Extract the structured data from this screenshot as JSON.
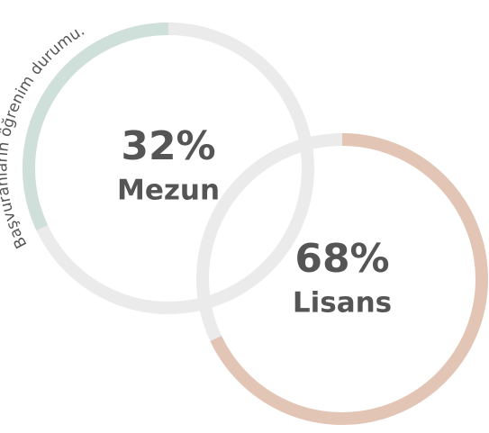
{
  "chart_data": {
    "type": "ring",
    "title": "Başvuranların öğrenim durumu.",
    "categories": [
      "Mezun",
      "Lisans"
    ],
    "values": [
      32,
      68
    ],
    "value_labels": [
      "32%",
      "68%"
    ],
    "colors": [
      "#cfe0da",
      "#e3c5b6"
    ],
    "track_color": "#ebebeb"
  }
}
